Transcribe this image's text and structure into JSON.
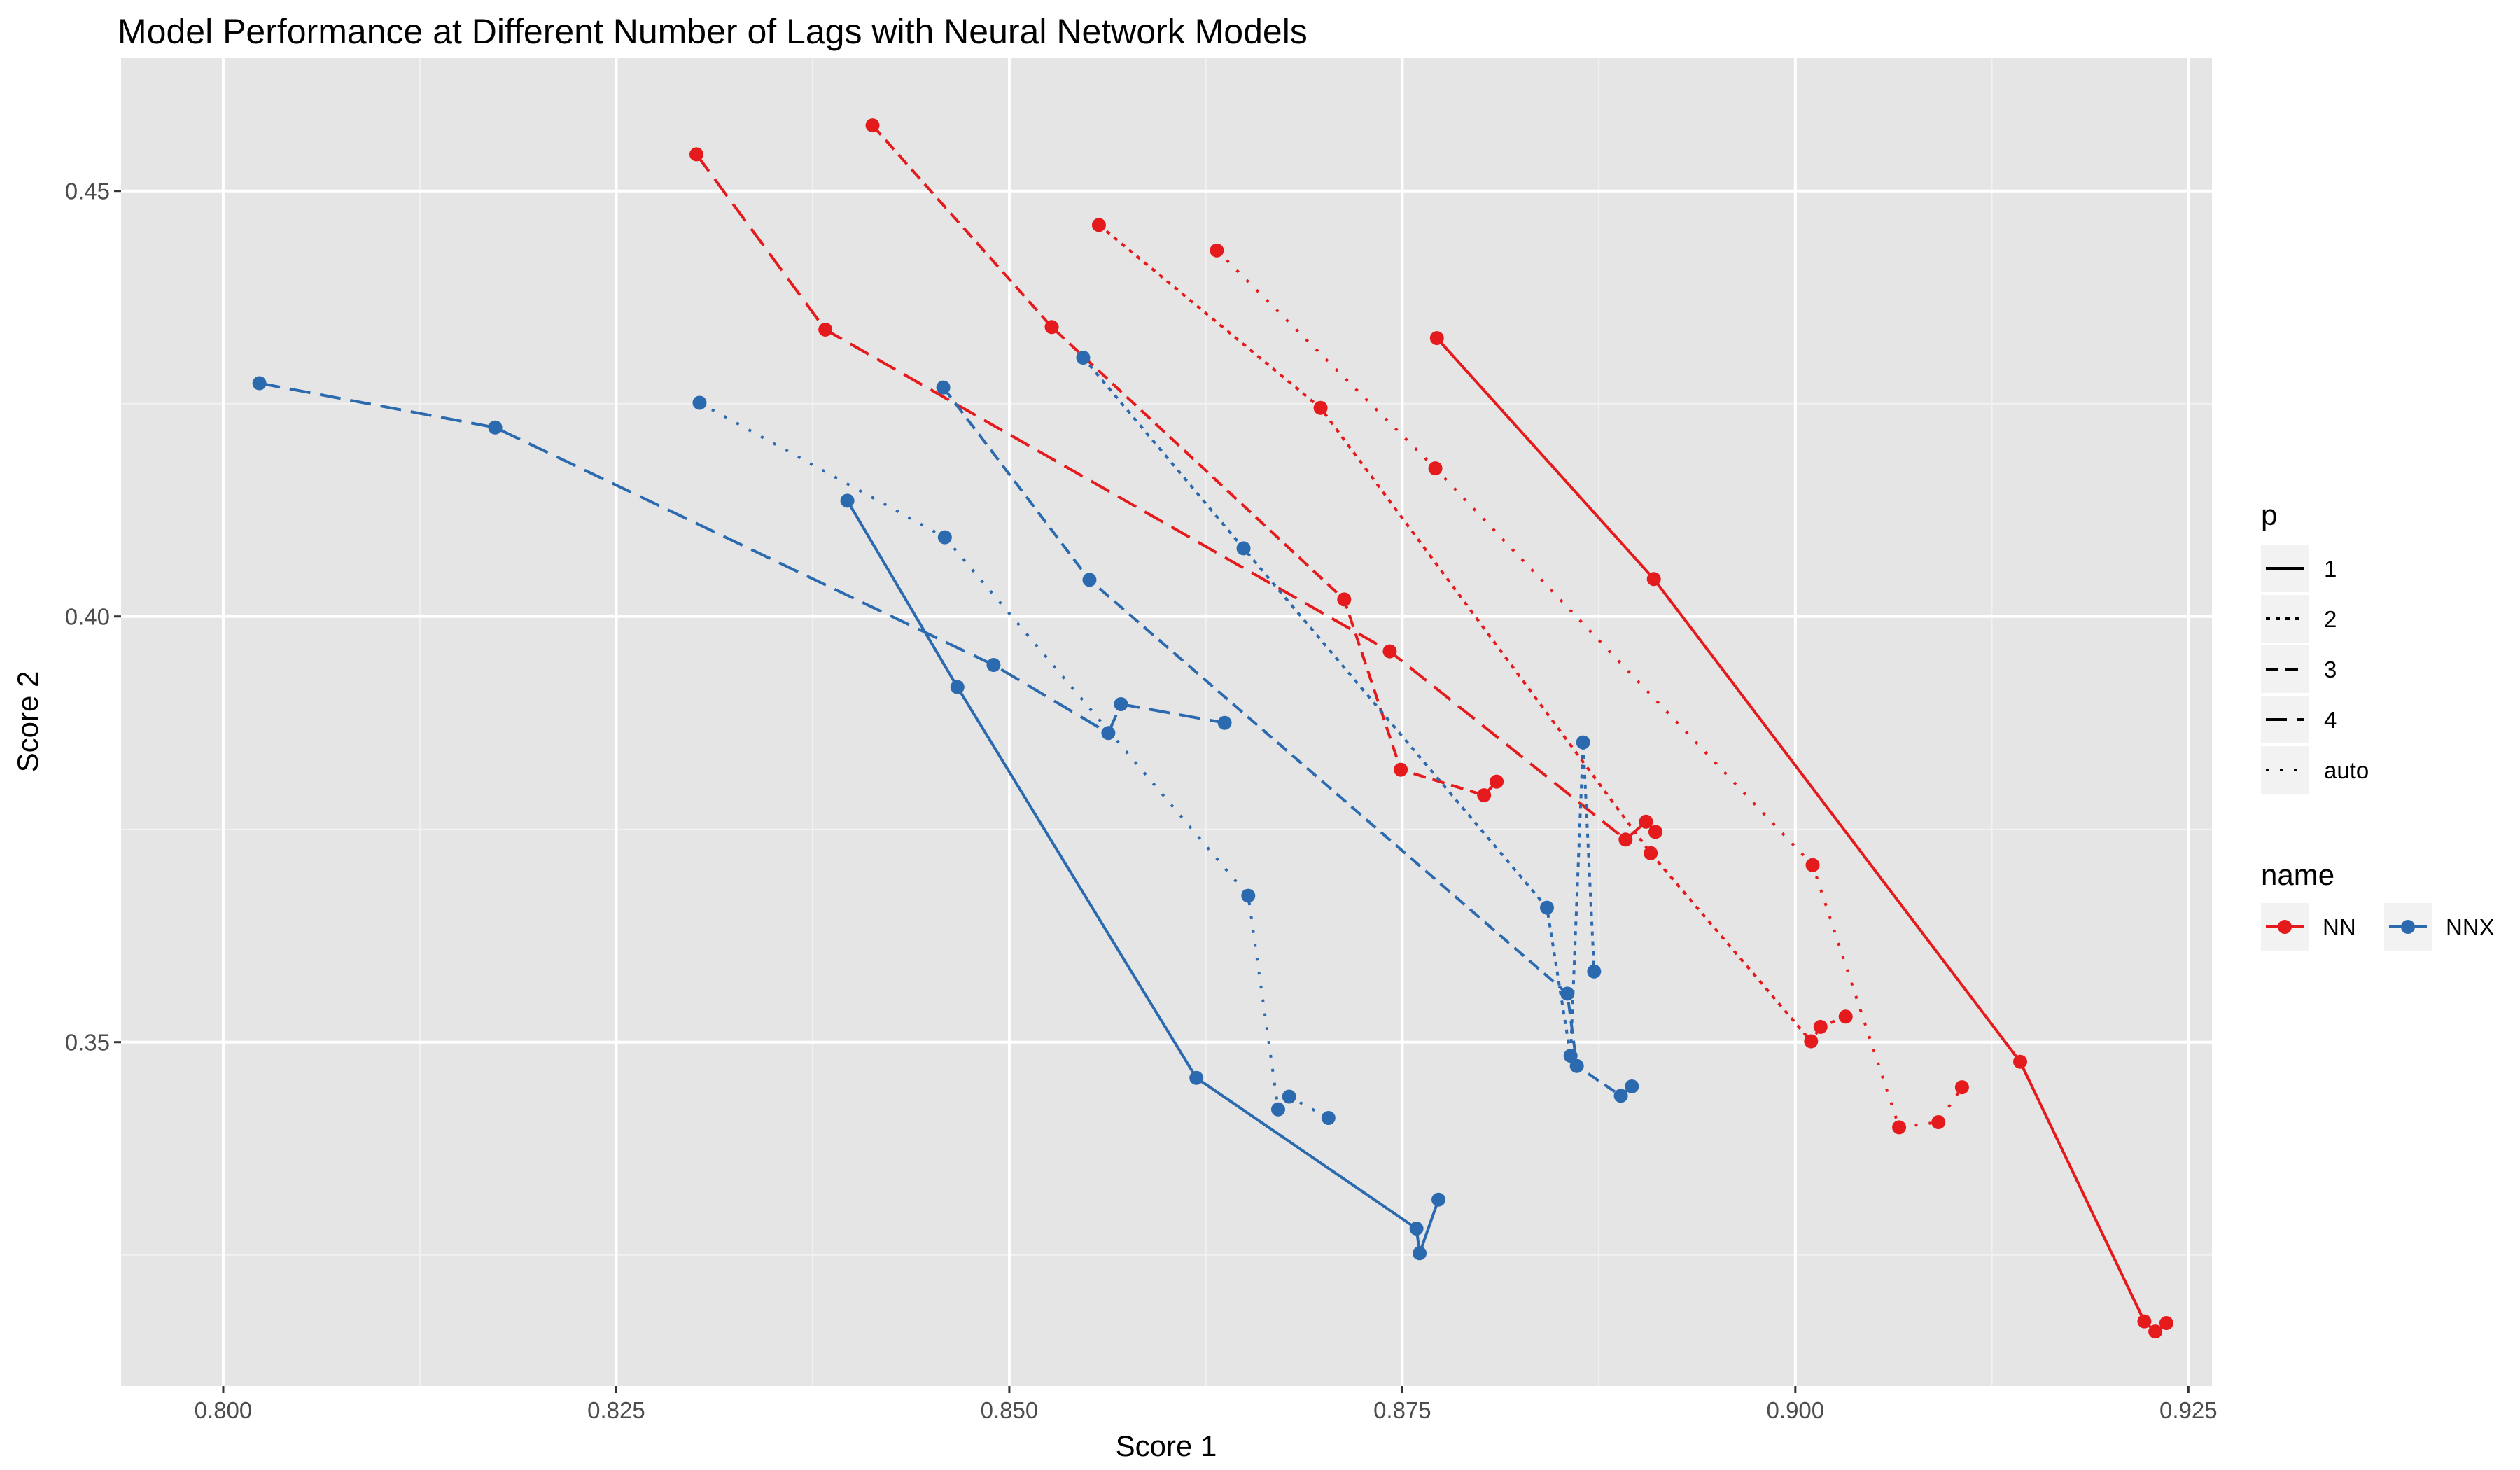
{
  "chart_data": {
    "type": "line",
    "title": "Model Performance at Different Number of Lags with Neural Network Models",
    "xlabel": "Score 1",
    "ylabel": "Score 2",
    "xlim": [
      0.7935,
      0.9265
    ],
    "ylim": [
      0.3096,
      0.4656
    ],
    "x_ticks": [
      0.8,
      0.825,
      0.85,
      0.875,
      0.9,
      0.925
    ],
    "x_tick_labels": [
      "0.800",
      "0.825",
      "0.850",
      "0.875",
      "0.900",
      "0.925"
    ],
    "y_ticks": [
      0.35,
      0.4,
      0.45
    ],
    "y_tick_labels": [
      "0.35",
      "0.40",
      "0.45"
    ],
    "grid": true,
    "legend_position": "right",
    "legend_linetype": {
      "title": "p",
      "entries": [
        {
          "label": "1",
          "dash": "solid"
        },
        {
          "label": "2",
          "dash": "dotted"
        },
        {
          "label": "3",
          "dash": "dashed"
        },
        {
          "label": "4",
          "dash": "longdash"
        },
        {
          "label": "auto",
          "dash": "dotted-sparse"
        }
      ]
    },
    "legend_color": {
      "title": "name",
      "entries": [
        {
          "label": "NN",
          "color": "#e41a1c"
        },
        {
          "label": "NNX",
          "color": "#2c6aaf"
        }
      ]
    },
    "series": [
      {
        "name": "NN",
        "p": "1",
        "color": "#e41a1c",
        "dash": "solid",
        "points": [
          [
            0.8772,
            0.4327
          ],
          [
            0.891,
            0.4044
          ],
          [
            0.9143,
            0.3477
          ],
          [
            0.9222,
            0.3172
          ],
          [
            0.9229,
            0.316
          ],
          [
            0.9236,
            0.317
          ]
        ]
      },
      {
        "name": "NN",
        "p": "2",
        "color": "#e41a1c",
        "dash": "dotted",
        "points": [
          [
            0.8557,
            0.446
          ],
          [
            0.8698,
            0.4245
          ],
          [
            0.8908,
            0.3722
          ],
          [
            0.901,
            0.3501
          ],
          [
            0.9016,
            0.3518
          ],
          [
            0.9032,
            0.353
          ]
        ]
      },
      {
        "name": "NN",
        "p": "3",
        "color": "#e41a1c",
        "dash": "dashed",
        "points": [
          [
            0.8413,
            0.4577
          ],
          [
            0.8527,
            0.434
          ],
          [
            0.8713,
            0.402
          ],
          [
            0.8749,
            0.382
          ],
          [
            0.8802,
            0.379
          ],
          [
            0.881,
            0.3806
          ]
        ]
      },
      {
        "name": "NN",
        "p": "4",
        "color": "#e41a1c",
        "dash": "longdash",
        "points": [
          [
            0.8301,
            0.4543
          ],
          [
            0.8383,
            0.4337
          ],
          [
            0.8742,
            0.3959
          ],
          [
            0.8892,
            0.3738
          ],
          [
            0.8905,
            0.3759
          ],
          [
            0.8911,
            0.3747
          ]
        ]
      },
      {
        "name": "NN",
        "p": "auto",
        "color": "#e41a1c",
        "dash": "dotted-sparse",
        "points": [
          [
            0.8632,
            0.443
          ],
          [
            0.8771,
            0.4174
          ],
          [
            0.9011,
            0.3708
          ],
          [
            0.9066,
            0.34
          ],
          [
            0.9091,
            0.3406
          ],
          [
            0.9106,
            0.3447
          ]
        ]
      },
      {
        "name": "NNX",
        "p": "1",
        "color": "#2c6aaf",
        "dash": "solid",
        "points": [
          [
            0.8397,
            0.4136
          ],
          [
            0.8467,
            0.3917
          ],
          [
            0.8619,
            0.3458
          ],
          [
            0.8759,
            0.3281
          ],
          [
            0.8761,
            0.3252
          ],
          [
            0.8773,
            0.3315
          ]
        ]
      },
      {
        "name": "NNX",
        "p": "2",
        "color": "#2c6aaf",
        "dash": "dotted",
        "points": [
          [
            0.8547,
            0.4304
          ],
          [
            0.8649,
            0.408
          ],
          [
            0.8842,
            0.3658
          ],
          [
            0.8857,
            0.3484
          ],
          [
            0.8865,
            0.3852
          ],
          [
            0.8872,
            0.3583
          ]
        ]
      },
      {
        "name": "NNX",
        "p": "3",
        "color": "#2c6aaf",
        "dash": "dashed",
        "points": [
          [
            0.8458,
            0.4269
          ],
          [
            0.8551,
            0.4043
          ],
          [
            0.8855,
            0.3557
          ],
          [
            0.8861,
            0.3472
          ],
          [
            0.8889,
            0.3437
          ],
          [
            0.8896,
            0.3448
          ]
        ]
      },
      {
        "name": "NNX",
        "p": "4",
        "color": "#2c6aaf",
        "dash": "longdash",
        "points": [
          [
            0.8023,
            0.4274
          ],
          [
            0.8173,
            0.4222
          ],
          [
            0.849,
            0.3943
          ],
          [
            0.8563,
            0.3863
          ],
          [
            0.8571,
            0.3897
          ],
          [
            0.8637,
            0.3875
          ]
        ]
      },
      {
        "name": "NNX",
        "p": "auto",
        "color": "#2c6aaf",
        "dash": "dotted-sparse",
        "points": [
          [
            0.8303,
            0.4251
          ],
          [
            0.8459,
            0.4093
          ],
          [
            0.8652,
            0.3672
          ],
          [
            0.8671,
            0.3421
          ],
          [
            0.8678,
            0.3436
          ],
          [
            0.8703,
            0.3411
          ]
        ]
      }
    ]
  }
}
